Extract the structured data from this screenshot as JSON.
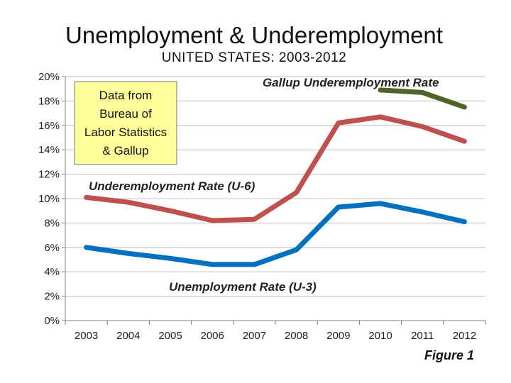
{
  "chart_data": {
    "type": "line",
    "title": "Unemployment & Underemployment",
    "subtitle": "UNITED STATES: 2003-2012",
    "x": [
      "2003",
      "2004",
      "2005",
      "2006",
      "2007",
      "2008",
      "2009",
      "2010",
      "2011",
      "2012"
    ],
    "yticks": [
      "0%",
      "2%",
      "4%",
      "6%",
      "8%",
      "10%",
      "12%",
      "14%",
      "16%",
      "18%",
      "20%"
    ],
    "ylim": [
      0,
      20
    ],
    "grid": true,
    "series": [
      {
        "name": "Gallup Underemployment Rate",
        "color": "#4f6228",
        "values": [
          null,
          null,
          null,
          null,
          null,
          null,
          null,
          18.9,
          18.7,
          17.5
        ]
      },
      {
        "name": "Underemployment Rate (U-6)",
        "color": "#c0504d",
        "values": [
          10.1,
          9.7,
          9.0,
          8.2,
          8.3,
          10.5,
          16.2,
          16.7,
          15.9,
          14.7
        ]
      },
      {
        "name": "Unemployment Rate (U-3)",
        "color": "#0070c0",
        "values": [
          6.0,
          5.5,
          5.1,
          4.6,
          4.6,
          5.8,
          9.3,
          9.6,
          8.9,
          8.1
        ]
      }
    ],
    "annotations": {
      "source_box": [
        "Data from",
        "Bureau of",
        "Labor Statistics",
        "& Gallup"
      ],
      "source_box_color": "#ffff99",
      "figure_label": "Figure 1"
    }
  }
}
